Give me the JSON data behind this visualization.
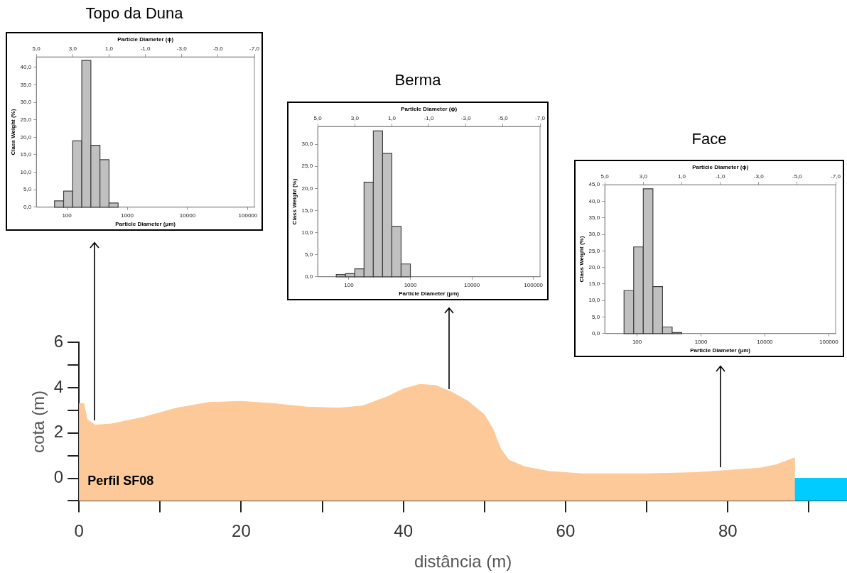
{
  "chart_data": [
    {
      "type": "histogram",
      "title": "Topo da Duna",
      "xlabel": "Particle Diameter (µm)",
      "x2label": "Particle Diameter (ϕ)",
      "ylabel": "Class Weight (%)",
      "log": "x",
      "grid": false,
      "color": "#c0c0c0",
      "bins": [
        62.5,
        88.4,
        125,
        176.8,
        250,
        353.6,
        500,
        707.1
      ],
      "values": [
        1.8,
        4.6,
        19.0,
        42.0,
        17.7,
        13.6,
        1.2
      ],
      "xlim": [
        31.25,
        128000
      ],
      "xticks": [
        100,
        1000,
        10000,
        100000
      ],
      "x2lim": [
        5,
        -7
      ],
      "x2ticks": [
        {
          "value": 5,
          "label": "5,0"
        },
        {
          "value": 3,
          "label": "3,0"
        },
        {
          "value": 1,
          "label": "1,0"
        },
        {
          "value": -1,
          "label": "-1,0"
        },
        {
          "value": -3,
          "label": "-3,0"
        },
        {
          "value": -5,
          "label": "-5,0"
        },
        {
          "value": -7,
          "label": "-7,0"
        }
      ],
      "ylim": [
        0,
        43
      ],
      "yticks": [
        {
          "value": 0,
          "label": "0,0"
        },
        {
          "value": 5,
          "label": "5,0"
        },
        {
          "value": 10,
          "label": "10,0"
        },
        {
          "value": 15,
          "label": "15,0"
        },
        {
          "value": 20,
          "label": "20,0"
        },
        {
          "value": 25,
          "label": "25,0"
        },
        {
          "value": 30,
          "label": "30,0"
        },
        {
          "value": 35,
          "label": "35,0"
        },
        {
          "value": 40,
          "label": "40,0"
        }
      ]
    },
    {
      "type": "histogram",
      "title": "Berma",
      "xlabel": "Particle Diameter (µm)",
      "x2label": "Particle Diameter (ϕ)",
      "ylabel": "Class Weight (%)",
      "log": "x",
      "grid": false,
      "color": "#c0c0c0",
      "bins": [
        62.5,
        88.4,
        125,
        176.8,
        250,
        353.6,
        500,
        707.1,
        1000
      ],
      "values": [
        0.5,
        0.7,
        1.8,
        21.4,
        33.0,
        27.9,
        11.4,
        2.9
      ],
      "xlim": [
        31.25,
        128000
      ],
      "xticks": [
        100,
        1000,
        10000,
        100000
      ],
      "x2lim": [
        5,
        -7
      ],
      "x2ticks": [
        {
          "value": 5,
          "label": "5,0"
        },
        {
          "value": 3,
          "label": "3,0"
        },
        {
          "value": 1,
          "label": "1,0"
        },
        {
          "value": -1,
          "label": "-1,0"
        },
        {
          "value": -3,
          "label": "-3,0"
        },
        {
          "value": -5,
          "label": "-5,0"
        },
        {
          "value": -7,
          "label": "-7,0"
        }
      ],
      "ylim": [
        0,
        34
      ],
      "yticks": [
        {
          "value": 0,
          "label": "0,0"
        },
        {
          "value": 5,
          "label": "5,0"
        },
        {
          "value": 10,
          "label": "10,0"
        },
        {
          "value": 15,
          "label": "15,0"
        },
        {
          "value": 20,
          "label": "20,0"
        },
        {
          "value": 25,
          "label": "25,0"
        },
        {
          "value": 30,
          "label": "30,0"
        }
      ]
    },
    {
      "type": "histogram",
      "title": "Face",
      "xlabel": "Particle Diameter (µm)",
      "x2label": "Particle Diameter (ϕ)",
      "ylabel": "Class Weight (%)",
      "log": "x",
      "grid": false,
      "color": "#c0c0c0",
      "bins": [
        62.5,
        88.4,
        125,
        176.8,
        250,
        353.6,
        500
      ],
      "values": [
        13.0,
        26.2,
        43.8,
        14.2,
        2.0,
        0.3
      ],
      "xlim": [
        31.25,
        128000
      ],
      "xticks": [
        100,
        1000,
        10000,
        100000
      ],
      "x2lim": [
        5,
        -7
      ],
      "x2ticks": [
        {
          "value": 5,
          "label": "5,0"
        },
        {
          "value": 3,
          "label": "3,0"
        },
        {
          "value": 1,
          "label": "1,0"
        },
        {
          "value": -1,
          "label": "-1,0"
        },
        {
          "value": -3,
          "label": "-3,0"
        },
        {
          "value": -5,
          "label": "-5,0"
        },
        {
          "value": -7,
          "label": "-7,0"
        }
      ],
      "ylim": [
        0,
        45
      ],
      "yticks": [
        {
          "value": 0,
          "label": "0,0"
        },
        {
          "value": 5,
          "label": "5,0"
        },
        {
          "value": 10,
          "label": "10,0"
        },
        {
          "value": 15,
          "label": "15,0"
        },
        {
          "value": 20,
          "label": "20,0"
        },
        {
          "value": 25,
          "label": "25,0"
        },
        {
          "value": 30,
          "label": "30,0"
        },
        {
          "value": 35,
          "label": "35,0"
        },
        {
          "value": 40,
          "label": "40,0"
        },
        {
          "value": 45,
          "label": "45,0"
        }
      ]
    },
    {
      "type": "area",
      "xlabel": "distância (m)",
      "ylabel": "cota (m)",
      "grid": false,
      "annotations": [
        "Perfil SF08"
      ],
      "xlim": [
        0,
        94.7
      ],
      "xticks": [
        0,
        {
          "value": 10,
          "label": null
        },
        20,
        {
          "value": 30,
          "label": null
        },
        40,
        {
          "value": 50,
          "label": null
        },
        60,
        {
          "value": 70,
          "label": null
        },
        80,
        {
          "value": 90,
          "label": null
        }
      ],
      "ylim": [
        -1,
        6
      ],
      "yticks": [
        {
          "value": -1,
          "label": null
        },
        0,
        {
          "value": 1,
          "label": null
        },
        2,
        {
          "value": 3,
          "label": null
        },
        4,
        {
          "value": 5,
          "label": null
        },
        6
      ],
      "series": [
        {
          "color": "#fdc998",
          "x": [
            0,
            0,
            0.6,
            1,
            2,
            4,
            8,
            12,
            16,
            20,
            24,
            28,
            32,
            35,
            38,
            40,
            42,
            44,
            46,
            48,
            50,
            51,
            52,
            53,
            55,
            58,
            62,
            70,
            76,
            80,
            84,
            86,
            88.2,
            88.2
          ],
          "values": [
            -1,
            3.3,
            3.3,
            2.6,
            2.35,
            2.4,
            2.7,
            3.1,
            3.35,
            3.4,
            3.3,
            3.15,
            3.1,
            3.2,
            3.6,
            3.95,
            4.15,
            4.1,
            3.8,
            3.4,
            2.8,
            2.2,
            1.3,
            0.8,
            0.5,
            0.3,
            0.2,
            0.2,
            0.25,
            0.35,
            0.45,
            0.6,
            0.9,
            -1
          ]
        },
        {
          "color": "#00ccff",
          "x": [
            88.2,
            88.2,
            94.7,
            94.7
          ],
          "values": [
            -1,
            0,
            0,
            -1
          ]
        }
      ]
    }
  ]
}
